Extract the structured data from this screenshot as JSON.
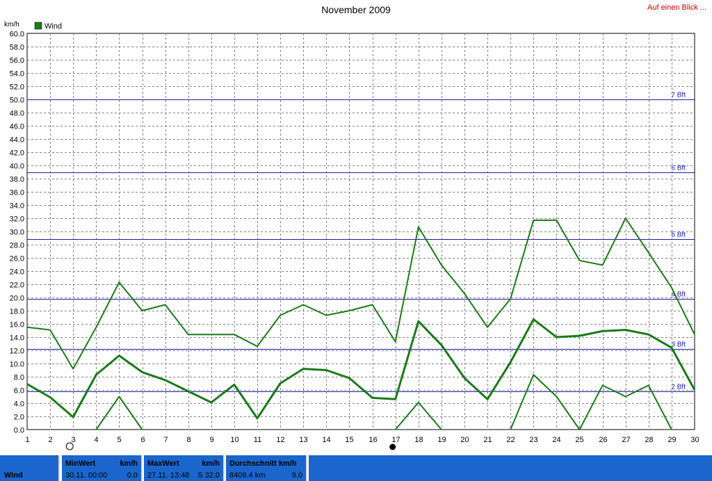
{
  "title": "November 2009",
  "link_text": "Auf einen Blick ...",
  "colors": {
    "series": "#1a7a1a",
    "grid": "#808080",
    "bft": "#1a1aaa",
    "footer": "#1a66cc"
  },
  "chart_data": {
    "type": "line",
    "title": "November 2009",
    "ylabel": "km/h",
    "legend": {
      "label": "Wind",
      "placement": "top-left"
    },
    "ylim": [
      0,
      60
    ],
    "ytick_step": 2,
    "xlim": [
      1,
      30
    ],
    "x": [
      1,
      2,
      3,
      4,
      5,
      6,
      7,
      8,
      9,
      10,
      11,
      12,
      13,
      14,
      15,
      16,
      17,
      18,
      19,
      20,
      21,
      22,
      23,
      24,
      25,
      26,
      27,
      28,
      29,
      30
    ],
    "grid": true,
    "series": [
      {
        "role": "max",
        "width": 2,
        "values": [
          15.5,
          15.1,
          9.2,
          15.5,
          22.3,
          18.0,
          18.9,
          14.4,
          14.4,
          14.4,
          12.6,
          17.3,
          18.9,
          17.3,
          18.0,
          18.9,
          13.3,
          30.7,
          24.9,
          20.6,
          15.5,
          19.8,
          31.7,
          31.7,
          25.6,
          24.9,
          32.0,
          26.8,
          21.5,
          14.4
        ]
      },
      {
        "role": "avg",
        "width": 3,
        "values": [
          6.9,
          4.9,
          1.9,
          8.3,
          11.2,
          8.7,
          7.5,
          5.8,
          4.1,
          6.8,
          1.7,
          7.0,
          9.2,
          9.0,
          7.8,
          4.8,
          4.6,
          16.4,
          12.8,
          7.8,
          4.6,
          10.2,
          16.7,
          14.0,
          14.2,
          14.9,
          15.1,
          14.4,
          12.4,
          6.0
        ]
      },
      {
        "role": "min",
        "width": 2,
        "values": [
          null,
          null,
          null,
          0,
          5.0,
          0,
          null,
          null,
          null,
          null,
          null,
          null,
          null,
          null,
          null,
          null,
          0,
          4.1,
          0,
          null,
          null,
          0,
          8.3,
          5.0,
          0,
          6.7,
          5.0,
          6.7,
          0,
          null
        ]
      }
    ],
    "beaufort": [
      {
        "label": "2 Bft",
        "value": 5.8
      },
      {
        "label": "3 Bft",
        "value": 12.2
      },
      {
        "label": "4 Bft",
        "value": 19.8
      },
      {
        "label": "5 Bft",
        "value": 28.8
      },
      {
        "label": "6 Bft",
        "value": 38.9
      },
      {
        "label": "7 Bft",
        "value": 50.0
      }
    ],
    "moon": [
      {
        "day": 3,
        "phase": "full"
      },
      {
        "day": 17,
        "phase": "new"
      }
    ]
  },
  "footer": {
    "name": "Wind",
    "min": {
      "header": "MinWert",
      "unit": "km/h",
      "date": "30.11.  00:00",
      "value": "0.0"
    },
    "max": {
      "header": "MaxWert",
      "unit": "km/h",
      "date": "27.11.  13:48",
      "value": "S 32.0"
    },
    "avg": {
      "header": "Durchschnitt km/h",
      "distance": "8409.4 km",
      "value": "9.0"
    }
  }
}
